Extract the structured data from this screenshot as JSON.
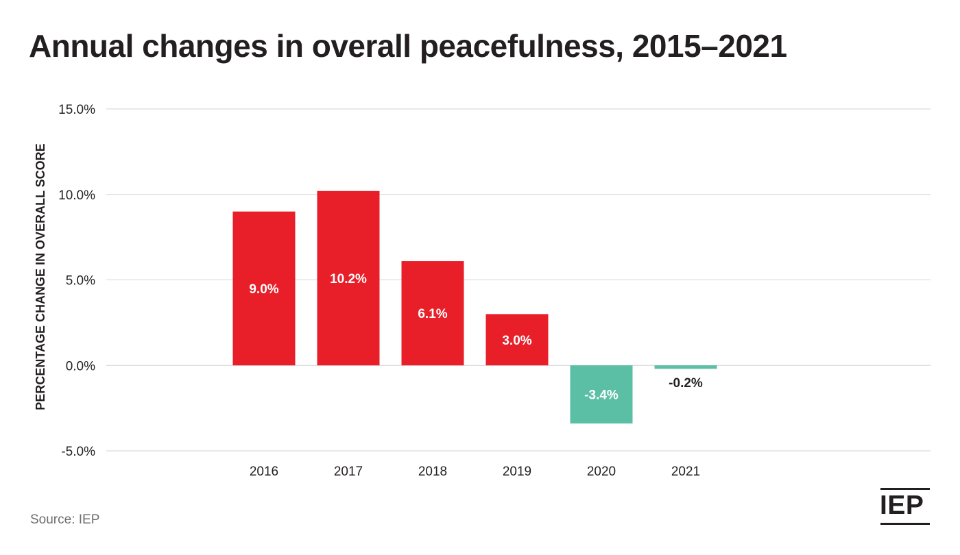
{
  "chart_data": {
    "type": "bar",
    "title": "Annual changes in overall peacefulness, 2015–2021",
    "xlabel": "",
    "ylabel": "PERCENTAGE CHANGE IN OVERALL SCORE",
    "categories": [
      "2016",
      "2017",
      "2018",
      "2019",
      "2020",
      "2021"
    ],
    "values": [
      9.0,
      10.2,
      6.1,
      3.0,
      -3.4,
      -0.2
    ],
    "data_labels": [
      "9.0%",
      "10.2%",
      "6.1%",
      "3.0%",
      "-3.4%",
      "-0.2%"
    ],
    "yticks": [
      15,
      10,
      5,
      0,
      -5
    ],
    "ytick_labels": [
      "15.0%",
      "10.0%",
      "5.0%",
      "0.0%",
      "-5.0%"
    ],
    "ylim": [
      -5,
      15
    ],
    "grid": true,
    "colors": {
      "positive": "#e81f29",
      "negative": "#5bbfa6",
      "label_on_bar": "#ffffff",
      "label_outside": "#231f20",
      "grid": "#d1d3d4"
    }
  },
  "source": "Source: IEP",
  "logo": "IEP"
}
